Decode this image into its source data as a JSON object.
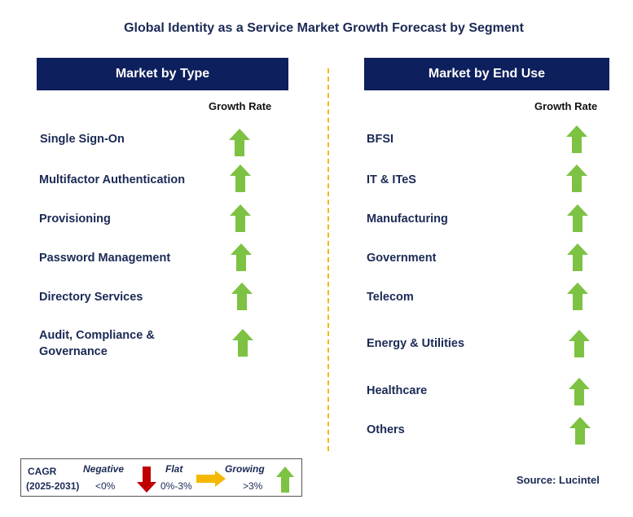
{
  "title": "Global Identity as a Service Market Growth Forecast by Segment",
  "left_panel": {
    "header": "Market by Type",
    "growth_label": "Growth Rate",
    "items": [
      {
        "label": "Single Sign-On",
        "trend": "growing"
      },
      {
        "label": "Multifactor Authentication",
        "trend": "growing"
      },
      {
        "label": "Provisioning",
        "trend": "growing"
      },
      {
        "label": "Password Management",
        "trend": "growing"
      },
      {
        "label": "Directory Services",
        "trend": "growing"
      },
      {
        "label": "Audit, Compliance &",
        "label2": "Governance",
        "trend": "growing"
      }
    ]
  },
  "right_panel": {
    "header": "Market by End Use",
    "growth_label": "Growth Rate",
    "items": [
      {
        "label": "BFSI",
        "trend": "growing"
      },
      {
        "label": "IT & ITeS",
        "trend": "growing"
      },
      {
        "label": "Manufacturing",
        "trend": "growing"
      },
      {
        "label": "Government",
        "trend": "growing"
      },
      {
        "label": "Telecom",
        "trend": "growing"
      },
      {
        "label": "Energy & Utilities",
        "trend": "growing"
      },
      {
        "label": "Healthcare",
        "trend": "growing"
      },
      {
        "label": "Others",
        "trend": "growing"
      }
    ]
  },
  "legend": {
    "cagr": "CAGR",
    "period": "(2025-2031)",
    "negative": {
      "label": "Negative",
      "range": "<0%",
      "color": "#c00000",
      "icon": "arrow-down-icon"
    },
    "flat": {
      "label": "Flat",
      "range": "0%-3%",
      "color": "#f5b800",
      "icon": "arrow-right-icon"
    },
    "growing": {
      "label": "Growing",
      "range": ">3%",
      "color": "#7dc242",
      "icon": "arrow-up-icon"
    }
  },
  "source": "Source: Lucintel",
  "colors": {
    "header_bg": "#0d1f5c",
    "text": "#1b2a55",
    "divider": "#f5b800",
    "growing": "#7dc242"
  }
}
